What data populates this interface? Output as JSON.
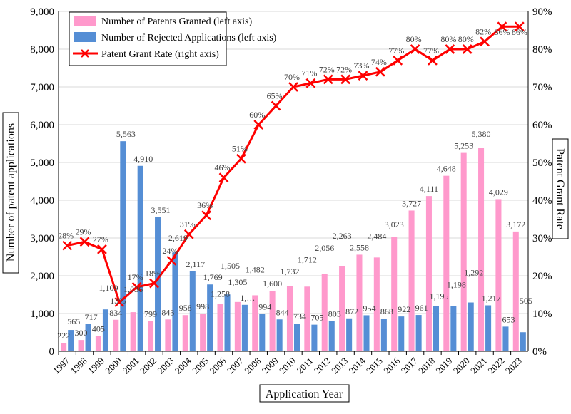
{
  "chart_data": {
    "type": "bar",
    "xlabel": "Application Year",
    "ylabel": "Number of patent applications",
    "y2label": "Patent Grant Rate",
    "ylim": [
      0,
      9000
    ],
    "y2lim": [
      0,
      90
    ],
    "yticks": [
      "0",
      "1,000",
      "2,000",
      "3,000",
      "4,000",
      "5,000",
      "6,000",
      "7,000",
      "8,000",
      "9,000"
    ],
    "y2ticks": [
      "0%",
      "10%",
      "20%",
      "30%",
      "40%",
      "50%",
      "60%",
      "70%",
      "80%",
      "90%"
    ],
    "grid": true,
    "legend_position": "top-left",
    "categories": [
      "1997",
      "1998",
      "1999",
      "2000",
      "2001",
      "2002",
      "2003",
      "2004",
      "2005",
      "2006",
      "2007",
      "2008",
      "2009",
      "2010",
      "2011",
      "2012",
      "2013",
      "2014",
      "2015",
      "2016",
      "2017",
      "2018",
      "2019",
      "2020",
      "2021",
      "2022",
      "2023"
    ],
    "series": [
      {
        "name": "Number of Patents Granted (left axis)",
        "kind": "bar",
        "color": "#ff99cc",
        "values": [
          222,
          300,
          405,
          834,
          1036,
          799,
          843,
          958,
          998,
          1258,
          1305,
          1482,
          1600,
          1732,
          1712,
          2056,
          2263,
          2558,
          2484,
          3023,
          3727,
          4111,
          4648,
          5253,
          5380,
          4029,
          3172
        ],
        "labels": [
          "222",
          "300",
          "405",
          "834",
          "1,036",
          "799",
          "843",
          "958",
          "998",
          "1,258",
          "1,305",
          "1,482",
          "1,600",
          "1,732",
          "1,712",
          "2,056",
          "2,263",
          "2,558",
          "2,484",
          "3,023",
          "3,727",
          "4,111",
          "4,648",
          "5,253",
          "5,380",
          "4,029",
          "3,172"
        ]
      },
      {
        "name": "Number of Rejected Applications (left axis)",
        "kind": "bar",
        "color": "#558ed5",
        "values": [
          565,
          717,
          1109,
          5563,
          4910,
          3551,
          2619,
          2117,
          1769,
          1505,
          1230,
          994,
          844,
          734,
          705,
          803,
          872,
          954,
          868,
          922,
          961,
          1195,
          1198,
          1292,
          1217,
          653,
          505
        ],
        "labels": [
          "565",
          "717",
          "1,109",
          "5,563",
          "4,910",
          "3,551",
          "2,619",
          "2,117",
          "1,769",
          "1,505",
          "1,…",
          "994",
          "844",
          "734",
          "705",
          "803",
          "872",
          "954",
          "868",
          "922",
          "961",
          "1,195",
          "1,198",
          "1,292",
          "1,217",
          "653",
          "505"
        ]
      },
      {
        "name": "Patent Grant Rate (right axis)",
        "kind": "line",
        "axis": "right",
        "color": "#ff0000",
        "values": [
          28,
          29,
          27,
          13,
          17,
          18,
          24,
          31,
          36,
          46,
          51,
          60,
          65,
          70,
          71,
          72,
          72,
          73,
          74,
          77,
          80,
          77,
          80,
          80,
          82,
          86,
          86
        ],
        "labels": [
          "28%",
          "29%",
          "27%",
          "13%",
          "17%",
          "18%",
          "24%",
          "31%",
          "36%",
          "46%",
          "51%",
          "60%",
          "65%",
          "70%",
          "71%",
          "72%",
          "72%",
          "73%",
          "74%",
          "77%",
          "80%",
          "77%",
          "80%",
          "80%",
          "82%",
          "86%",
          "86%"
        ]
      }
    ]
  }
}
